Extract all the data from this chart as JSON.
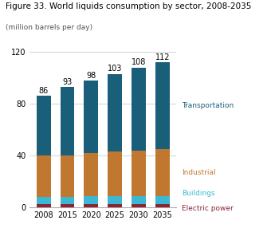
{
  "title": "Figure 33. World liquids consumption by sector, 2008-2035",
  "subtitle": "(million barrels per day)",
  "years": [
    2008,
    2015,
    2020,
    2025,
    2030,
    2035
  ],
  "totals": [
    86,
    93,
    98,
    103,
    108,
    112
  ],
  "electric_power": [
    3,
    3,
    3,
    3,
    3,
    3
  ],
  "buildings": [
    5,
    5,
    6,
    6,
    6,
    6
  ],
  "industrial": [
    32,
    32,
    33,
    34,
    35,
    36
  ],
  "colors": {
    "electric_power": "#8B2535",
    "buildings": "#3BB8D4",
    "industrial": "#C07830",
    "transportation": "#1A5F7A"
  },
  "legend_labels": {
    "transportation": "Transportation",
    "industrial": "Industrial",
    "buildings": "Buildings",
    "electric_power": "Electric power"
  },
  "ylim": [
    0,
    120
  ],
  "yticks": [
    0,
    40,
    80,
    120
  ],
  "background_color": "#ffffff",
  "bar_width": 0.6,
  "title_fontsize": 7.5,
  "subtitle_fontsize": 6.5,
  "tick_fontsize": 7,
  "label_fontsize": 6.5,
  "annot_fontsize": 7
}
